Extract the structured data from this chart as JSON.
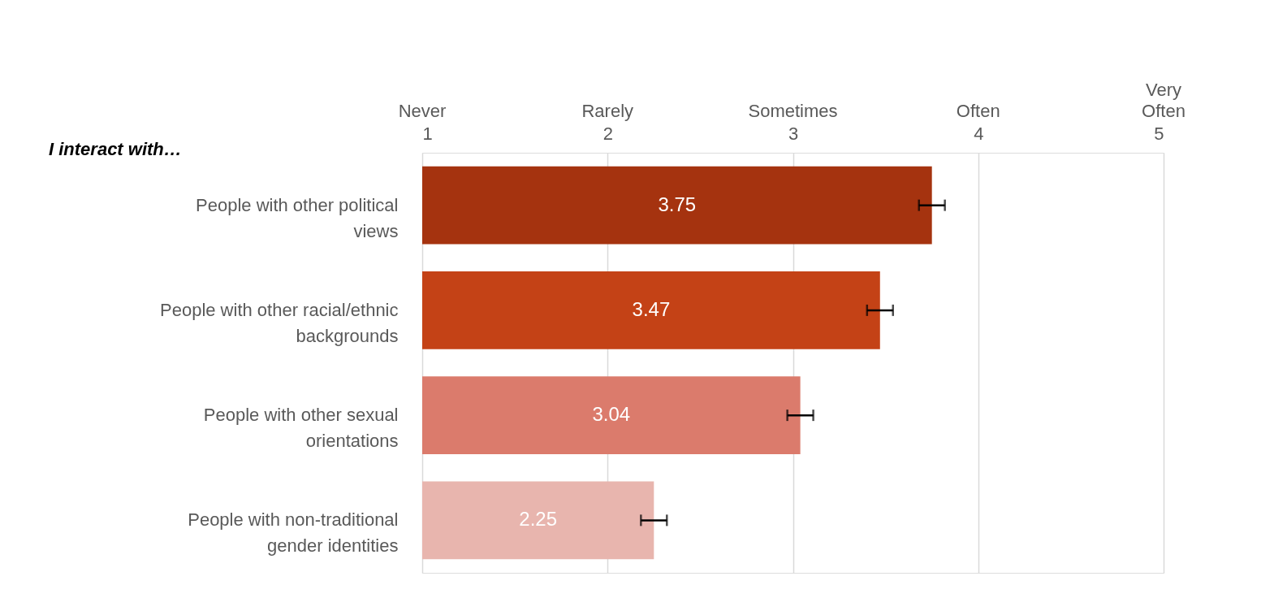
{
  "chart_data": {
    "type": "bar",
    "orientation": "horizontal",
    "categories": [
      "People with other political views",
      "People with other racial/ethnic backgrounds",
      "People with other sexual orientations",
      "People with non-traditional gender identities"
    ],
    "values": [
      3.75,
      3.47,
      3.04,
      2.25
    ],
    "colors": [
      "#a5330f",
      "#c44216",
      "#db7b6c",
      "#e8b5ae"
    ],
    "errors": [
      0.07,
      0.07,
      0.07,
      0.07
    ],
    "xlim": [
      1,
      5
    ],
    "xticks": [
      1,
      2,
      3,
      4,
      5
    ],
    "grid": "x",
    "data_labels": true,
    "legend": false,
    "annotations": [
      "I interact with…",
      "Never",
      "Rarely",
      "Sometimes",
      "Often",
      "Very\nOften"
    ]
  }
}
